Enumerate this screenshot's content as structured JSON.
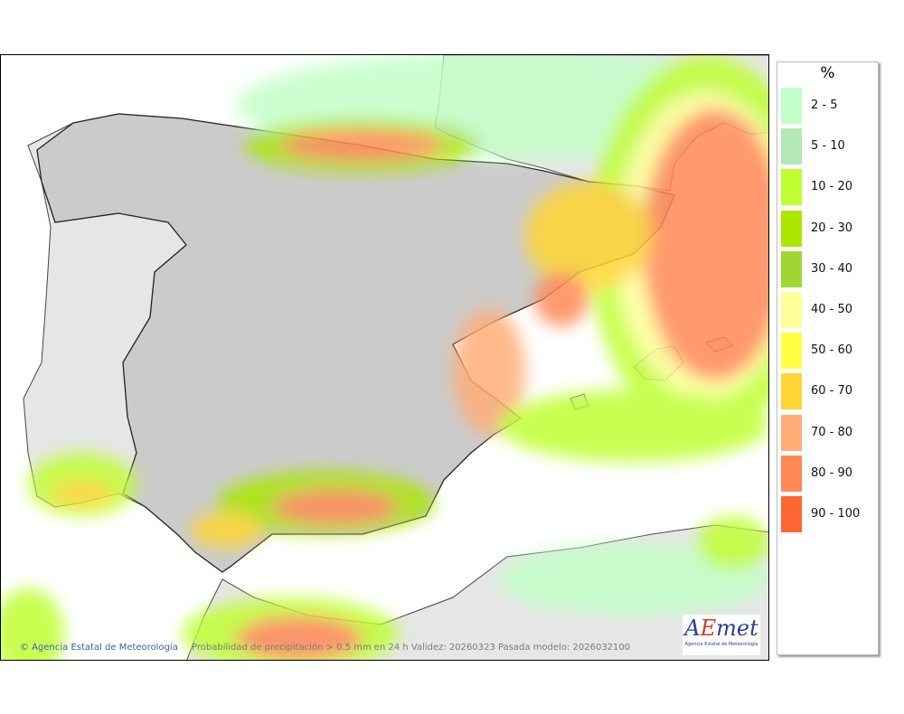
{
  "legend": {
    "unit": "%",
    "items": [
      {
        "label": "2 - 5",
        "color": "#c2ffc8"
      },
      {
        "label": "5 - 10",
        "color": "#b4e8b8"
      },
      {
        "label": "10 - 20",
        "color": "#bfff33"
      },
      {
        "label": "20 - 30",
        "color": "#aae600"
      },
      {
        "label": "30 - 40",
        "color": "#a0d633"
      },
      {
        "label": "40 - 50",
        "color": "#ffff99"
      },
      {
        "label": "50 - 60",
        "color": "#ffff44"
      },
      {
        "label": "60 - 70",
        "color": "#ffd633"
      },
      {
        "label": "70 - 80",
        "color": "#ffad77"
      },
      {
        "label": "80 - 90",
        "color": "#ff8855"
      },
      {
        "label": "90 - 100",
        "color": "#ff6633"
      }
    ]
  },
  "footer": {
    "copyright": "© Agencia Estatal de Meteorología",
    "caption": "Probabilidad de precipitación > 0.5 mm en 24 h Validez: 20260323 Pasada modelo: 2026032100"
  },
  "logo": {
    "text": "AEMet",
    "subtitle": "Agencia Estatal de Meteorología"
  },
  "map": {
    "land_color": "#e6e6e6",
    "sea_color": "#ffffff",
    "spain_color": "#cfcfcf"
  }
}
